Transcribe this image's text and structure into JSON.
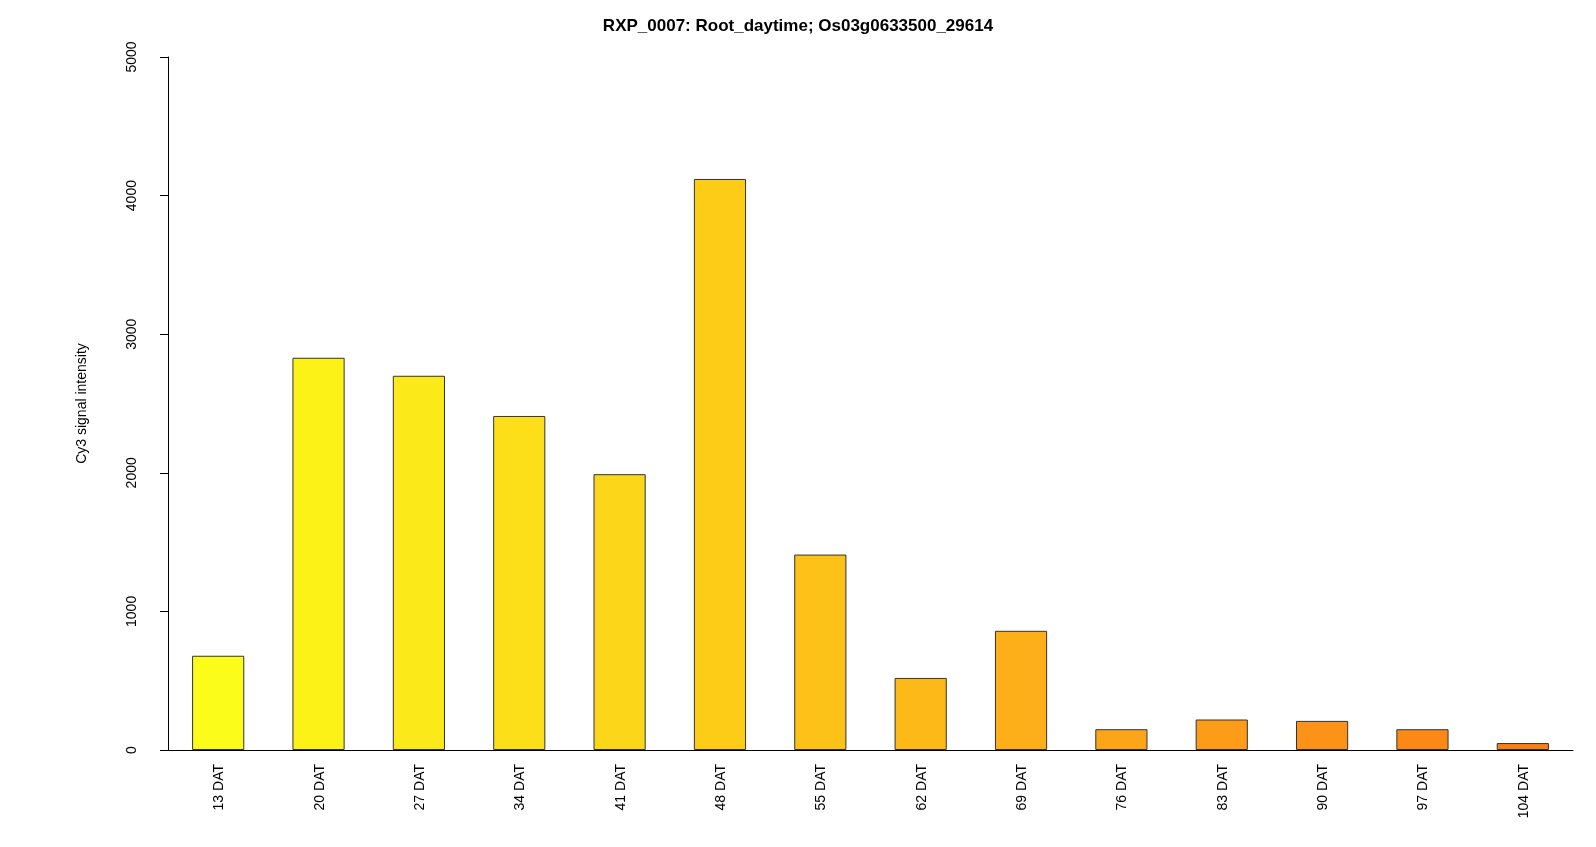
{
  "chart_data": {
    "type": "bar",
    "title": "RXP_0007: Root_daytime; Os03g0633500_29614",
    "ylabel": "Cy3 signal intensity",
    "categories": [
      "13 DAT",
      "20 DAT",
      "27 DAT",
      "34 DAT",
      "41 DAT",
      "48 DAT",
      "55 DAT",
      "62 DAT",
      "69 DAT",
      "76 DAT",
      "83 DAT",
      "90 DAT",
      "97 DAT",
      "104 DAT"
    ],
    "values": [
      680,
      2830,
      2700,
      2410,
      1990,
      4120,
      1410,
      520,
      860,
      150,
      220,
      210,
      150,
      50
    ],
    "colors": [
      "#fcfc1a",
      "#fcf218",
      "#fce919",
      "#fcdf19",
      "#fcd619",
      "#fccc16",
      "#fcc218",
      "#fcb918",
      "#fcaf18",
      "#fca519",
      "#fc9c18",
      "#fc9217",
      "#fc8916",
      "#fc7f15"
    ],
    "ylim": [
      0,
      5000
    ],
    "yticks": [
      0,
      1000,
      2000,
      3000,
      4000,
      5000
    ],
    "grid": false
  }
}
